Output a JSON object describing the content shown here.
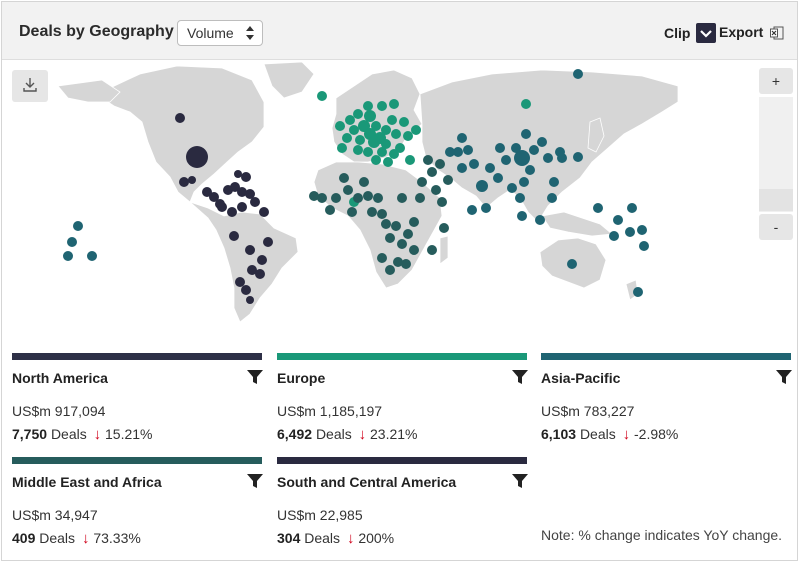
{
  "header": {
    "title": "Deals by Geography",
    "metric_select": "Volume",
    "clip_label": "Clip",
    "export_label": "Export"
  },
  "map": {
    "zoom_in_label": "+",
    "zoom_out_label": "-",
    "colors": {
      "north_america": "#2a2a40",
      "europe": "#1a9878",
      "asia_pacific": "#1f6472",
      "middle_east_africa": "#265c5c",
      "south_central_america": "#2a2a40",
      "land": "#d6d6d6"
    }
  },
  "regions": [
    {
      "key": "na",
      "name": "North America",
      "value": "US$m 917,094",
      "deal_count": "7,750",
      "deals_word": "Deals",
      "arrow": "↓",
      "change": "15.21%",
      "color": "#2e3047"
    },
    {
      "key": "eu",
      "name": "Europe",
      "value": "US$m 1,185,197",
      "deal_count": "6,492",
      "deals_word": "Deals",
      "arrow": "↓",
      "change": "23.21%",
      "color": "#1a9878"
    },
    {
      "key": "ap",
      "name": "Asia-Pacific",
      "value": "US$m 783,227",
      "deal_count": "6,103",
      "deals_word": "Deals",
      "arrow": "↓",
      "change": "-2.98%",
      "color": "#1f6472"
    },
    {
      "key": "mea",
      "name": "Middle East and Africa",
      "value": "US$m 34,947",
      "deal_count": "409",
      "deals_word": "Deals",
      "arrow": "↓",
      "change": "73.33%",
      "color": "#265c5c"
    },
    {
      "key": "sca",
      "name": "South and Central America",
      "value": "US$m 22,985",
      "deal_count": "304",
      "deals_word": "Deals",
      "arrow": "↓",
      "change": "200%",
      "color": "#2a2a40"
    }
  ],
  "note": "Note: % change indicates YoY change."
}
